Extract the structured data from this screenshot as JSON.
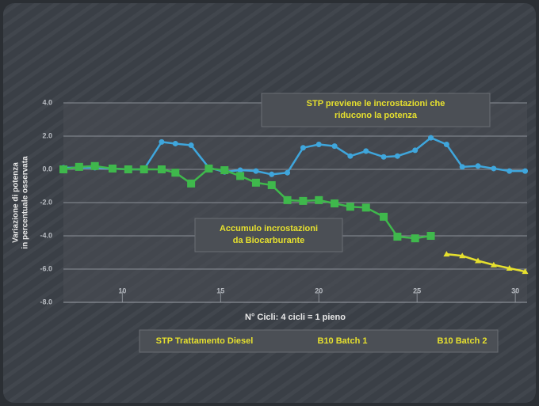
{
  "chart_data": {
    "type": "line",
    "y_label": [
      "Variazione di potenza",
      "in percentuale osservata"
    ],
    "x_label": "N° Cicli: 4 cicli = 1 pieno",
    "annotations": [
      {
        "lines": [
          "STP previene le incrostazioni che",
          "riducono la potenza"
        ]
      },
      {
        "lines": [
          "Accumulo incrostazioni",
          "da Biocarburante"
        ]
      }
    ],
    "x": [
      7.0,
      7.8,
      8.6,
      9.5,
      10.3,
      11.1,
      12.0,
      12.7,
      13.5,
      14.4,
      15.2,
      16.0,
      16.8,
      17.6,
      18.4,
      19.2,
      20.0,
      20.8,
      21.6,
      22.4,
      23.3,
      24.0,
      24.9,
      25.7,
      26.5,
      27.3,
      28.1,
      28.9,
      29.7,
      30.5
    ],
    "series": [
      {
        "name": "STP Trattamento Diesel",
        "color": "#3fa6dc",
        "marker": "circle",
        "values": [
          0.1,
          0.1,
          0.1,
          0.05,
          0.0,
          0.0,
          1.65,
          1.55,
          1.45,
          0.1,
          -0.15,
          -0.05,
          -0.1,
          -0.3,
          -0.2,
          1.3,
          1.5,
          1.4,
          0.8,
          1.1,
          0.75,
          0.8,
          1.15,
          1.9,
          1.5,
          0.15,
          0.2,
          0.05,
          -0.1,
          -0.1
        ]
      },
      {
        "name": "B10 Batch 1",
        "color": "#3fb84c",
        "marker": "square",
        "values": [
          0.0,
          0.15,
          0.2,
          0.05,
          0.0,
          0.0,
          0.0,
          -0.2,
          -0.85,
          0.05,
          -0.05,
          -0.4,
          -0.8,
          -0.95,
          -1.85,
          -1.9,
          -1.85,
          -2.05,
          -2.25,
          -2.3,
          -2.85,
          -4.05,
          -4.15,
          -4.0,
          null,
          null,
          null,
          null,
          null,
          null
        ]
      },
      {
        "name": "B10 Batch 2",
        "color": "#e6e02e",
        "marker": "triangle",
        "values": [
          null,
          null,
          null,
          null,
          null,
          null,
          null,
          null,
          null,
          null,
          null,
          null,
          null,
          null,
          null,
          null,
          null,
          null,
          null,
          null,
          null,
          null,
          null,
          null,
          -5.1,
          -5.2,
          -5.5,
          -5.75,
          -5.95,
          -6.15
        ]
      }
    ],
    "xlim": [
      7,
      30.6
    ],
    "ylim": [
      -8,
      4
    ],
    "xticks": [
      10,
      15,
      20,
      25,
      30
    ],
    "yticks": [
      {
        "value": 4,
        "label": "4.0"
      },
      {
        "value": 2,
        "label": "2.0"
      },
      {
        "value": 0,
        "label": "0.0"
      },
      {
        "value": -2,
        "label": "-2.0"
      },
      {
        "value": -4,
        "label": "-4.0"
      },
      {
        "value": -6,
        "label": "-6.0"
      },
      {
        "value": -8,
        "label": "-8.0"
      }
    ],
    "grid": true
  }
}
